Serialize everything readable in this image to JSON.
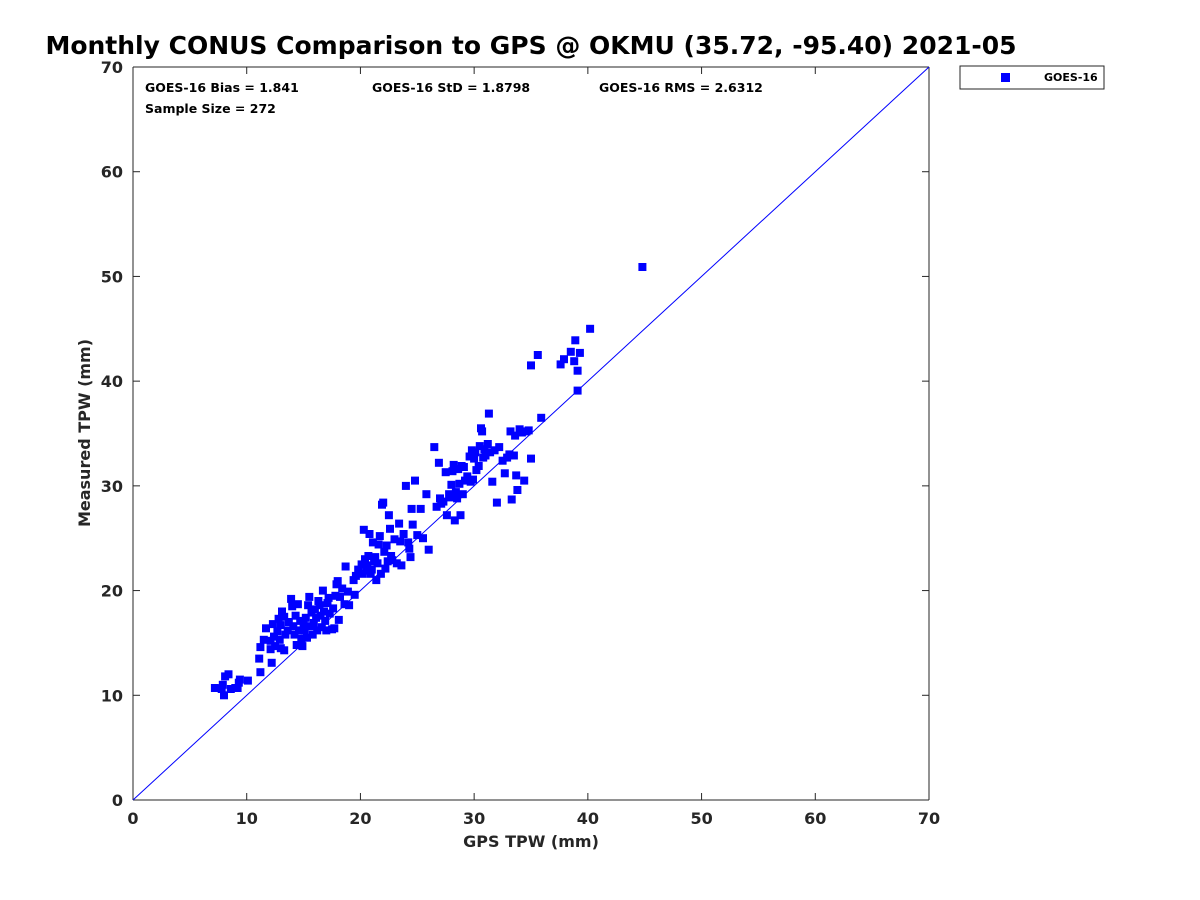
{
  "chart_data": {
    "type": "scatter",
    "title": "Monthly CONUS Comparison to GPS @ OKMU (35.72, -95.40) 2021-05",
    "xlabel": "GPS TPW (mm)",
    "ylabel": "Measured TPW (mm)",
    "xlim": [
      0,
      70
    ],
    "ylim": [
      0,
      70
    ],
    "xticks": [
      "0",
      "10",
      "20",
      "30",
      "40",
      "50",
      "60",
      "70"
    ],
    "yticks": [
      "0",
      "10",
      "20",
      "30",
      "40",
      "50",
      "60",
      "70"
    ],
    "grid": false,
    "legend_position": "top-right, outside plot",
    "reference_line": {
      "from": [
        0,
        0
      ],
      "to": [
        70,
        70
      ],
      "color": "#0000ff"
    },
    "stats": {
      "bias": "GOES-16 Bias = 1.841",
      "std": "GOES-16 StD = 1.8798",
      "rms": "GOES-16 RMS = 2.6312",
      "sample": "Sample Size = 272"
    },
    "series": [
      {
        "name": "GOES-16",
        "color": "#0000ff",
        "marker": "square",
        "points": [
          [
            7.2,
            10.7
          ],
          [
            7.8,
            10.6
          ],
          [
            8.0,
            10.0
          ],
          [
            7.9,
            11.0
          ],
          [
            8.1,
            11.8
          ],
          [
            8.4,
            12.0
          ],
          [
            8.6,
            10.6
          ],
          [
            9.0,
            10.7
          ],
          [
            9.2,
            10.7
          ],
          [
            9.4,
            11.5
          ],
          [
            9.3,
            11.2
          ],
          [
            10.1,
            11.4
          ],
          [
            11.2,
            12.2
          ],
          [
            11.1,
            13.5
          ],
          [
            11.2,
            14.6
          ],
          [
            11.5,
            15.3
          ],
          [
            11.7,
            16.4
          ],
          [
            12.1,
            14.4
          ],
          [
            12.2,
            13.1
          ],
          [
            12.1,
            15.2
          ],
          [
            12.3,
            16.8
          ],
          [
            12.4,
            15.6
          ],
          [
            12.5,
            14.7
          ],
          [
            12.7,
            16.1
          ],
          [
            12.8,
            17.3
          ],
          [
            12.9,
            15.3
          ],
          [
            13.0,
            14.5
          ],
          [
            13.0,
            16.7
          ],
          [
            13.1,
            18.0
          ],
          [
            13.3,
            17.5
          ],
          [
            13.4,
            15.8
          ],
          [
            13.3,
            14.3
          ],
          [
            13.6,
            16.2
          ],
          [
            13.7,
            17.0
          ],
          [
            13.9,
            19.2
          ],
          [
            14.0,
            18.5
          ],
          [
            14.1,
            16.6
          ],
          [
            14.2,
            15.8
          ],
          [
            14.3,
            17.6
          ],
          [
            14.5,
            18.7
          ],
          [
            14.4,
            14.8
          ],
          [
            14.6,
            16.2
          ],
          [
            14.7,
            17.1
          ],
          [
            14.8,
            15.4
          ],
          [
            14.9,
            14.7
          ],
          [
            15.0,
            16.8
          ],
          [
            15.1,
            16.2
          ],
          [
            15.2,
            17.4
          ],
          [
            15.3,
            15.5
          ],
          [
            15.4,
            18.6
          ],
          [
            15.5,
            19.4
          ],
          [
            15.6,
            16.6
          ],
          [
            15.7,
            17.9
          ],
          [
            15.8,
            15.8
          ],
          [
            15.9,
            16.9
          ],
          [
            16.0,
            18.2
          ],
          [
            16.1,
            17.4
          ],
          [
            16.2,
            16.2
          ],
          [
            16.3,
            19.0
          ],
          [
            16.4,
            18.6
          ],
          [
            16.5,
            17.6
          ],
          [
            16.6,
            16.5
          ],
          [
            16.7,
            20.0
          ],
          [
            16.8,
            18.0
          ],
          [
            16.9,
            17.1
          ],
          [
            17.0,
            16.2
          ],
          [
            17.1,
            18.8
          ],
          [
            17.2,
            19.3
          ],
          [
            17.3,
            17.8
          ],
          [
            17.5,
            16.3
          ],
          [
            17.6,
            18.3
          ],
          [
            17.7,
            16.4
          ],
          [
            17.8,
            19.5
          ],
          [
            17.9,
            20.6
          ],
          [
            18.0,
            20.9
          ],
          [
            18.1,
            17.2
          ],
          [
            18.2,
            19.4
          ],
          [
            18.4,
            20.2
          ],
          [
            18.6,
            18.7
          ],
          [
            18.7,
            22.3
          ],
          [
            18.9,
            19.9
          ],
          [
            19.0,
            18.6
          ],
          [
            19.4,
            21.0
          ],
          [
            19.5,
            19.6
          ],
          [
            19.6,
            21.4
          ],
          [
            19.8,
            22.0
          ],
          [
            20.1,
            22.5
          ],
          [
            20.2,
            21.6
          ],
          [
            20.3,
            25.8
          ],
          [
            20.4,
            23.0
          ],
          [
            20.5,
            21.9
          ],
          [
            20.6,
            22.4
          ],
          [
            20.7,
            23.3
          ],
          [
            20.8,
            25.4
          ],
          [
            20.9,
            21.6
          ],
          [
            21.0,
            22.0
          ],
          [
            21.1,
            24.6
          ],
          [
            21.2,
            22.8
          ],
          [
            21.3,
            23.2
          ],
          [
            21.4,
            21.0
          ],
          [
            21.5,
            22.6
          ],
          [
            21.6,
            24.4
          ],
          [
            21.7,
            25.2
          ],
          [
            21.8,
            21.6
          ],
          [
            21.9,
            28.2
          ],
          [
            22.0,
            28.4
          ],
          [
            22.1,
            23.7
          ],
          [
            22.2,
            22.1
          ],
          [
            22.3,
            24.3
          ],
          [
            22.4,
            22.8
          ],
          [
            22.5,
            27.2
          ],
          [
            22.6,
            25.9
          ],
          [
            22.7,
            23.3
          ],
          [
            22.8,
            22.9
          ],
          [
            23.0,
            24.9
          ],
          [
            23.2,
            22.6
          ],
          [
            23.4,
            26.4
          ],
          [
            23.5,
            24.7
          ],
          [
            23.6,
            22.4
          ],
          [
            23.8,
            25.4
          ],
          [
            24.0,
            30.0
          ],
          [
            24.2,
            24.6
          ],
          [
            24.3,
            24.0
          ],
          [
            24.4,
            23.2
          ],
          [
            24.5,
            27.8
          ],
          [
            24.6,
            26.3
          ],
          [
            24.8,
            30.5
          ],
          [
            25.0,
            25.3
          ],
          [
            25.3,
            27.8
          ],
          [
            25.5,
            25.0
          ],
          [
            25.8,
            29.2
          ],
          [
            26.0,
            23.9
          ],
          [
            26.5,
            33.7
          ],
          [
            26.7,
            28.0
          ],
          [
            26.9,
            32.2
          ],
          [
            27.0,
            28.8
          ],
          [
            27.1,
            28.3
          ],
          [
            27.3,
            28.5
          ],
          [
            27.5,
            31.3
          ],
          [
            27.6,
            27.2
          ],
          [
            27.8,
            29.2
          ],
          [
            27.9,
            28.9
          ],
          [
            28.0,
            30.1
          ],
          [
            28.1,
            31.4
          ],
          [
            28.2,
            32.0
          ],
          [
            28.3,
            26.7
          ],
          [
            28.4,
            29.4
          ],
          [
            28.5,
            28.8
          ],
          [
            28.6,
            31.6
          ],
          [
            28.7,
            30.2
          ],
          [
            28.8,
            27.2
          ],
          [
            28.9,
            31.9
          ],
          [
            29.0,
            29.2
          ],
          [
            29.1,
            31.8
          ],
          [
            29.2,
            30.5
          ],
          [
            29.4,
            30.9
          ],
          [
            29.6,
            32.8
          ],
          [
            29.7,
            30.4
          ],
          [
            29.8,
            33.4
          ],
          [
            29.9,
            30.6
          ],
          [
            30.0,
            32.6
          ],
          [
            30.1,
            33.2
          ],
          [
            30.2,
            31.5
          ],
          [
            30.4,
            31.9
          ],
          [
            30.5,
            33.8
          ],
          [
            30.6,
            35.5
          ],
          [
            30.7,
            35.2
          ],
          [
            30.8,
            32.7
          ],
          [
            30.9,
            33.5
          ],
          [
            31.0,
            32.9
          ],
          [
            31.2,
            34.0
          ],
          [
            31.3,
            36.9
          ],
          [
            31.4,
            33.2
          ],
          [
            31.6,
            30.4
          ],
          [
            31.8,
            33.4
          ],
          [
            32.0,
            28.4
          ],
          [
            32.2,
            33.7
          ],
          [
            32.5,
            32.4
          ],
          [
            32.7,
            31.2
          ],
          [
            32.9,
            32.7
          ],
          [
            33.1,
            33.0
          ],
          [
            33.2,
            35.2
          ],
          [
            33.3,
            28.7
          ],
          [
            33.5,
            32.9
          ],
          [
            33.6,
            34.8
          ],
          [
            33.7,
            31.0
          ],
          [
            33.8,
            29.6
          ],
          [
            34.0,
            35.4
          ],
          [
            34.2,
            35.1
          ],
          [
            34.4,
            30.5
          ],
          [
            34.6,
            35.2
          ],
          [
            34.8,
            35.3
          ],
          [
            35.0,
            32.6
          ],
          [
            35.0,
            41.5
          ],
          [
            35.6,
            42.5
          ],
          [
            35.9,
            36.5
          ],
          [
            37.6,
            41.6
          ],
          [
            37.9,
            42.1
          ],
          [
            38.5,
            42.8
          ],
          [
            38.8,
            41.9
          ],
          [
            38.9,
            43.9
          ],
          [
            39.1,
            41.0
          ],
          [
            39.3,
            42.7
          ],
          [
            39.1,
            39.1
          ],
          [
            40.2,
            45.0
          ],
          [
            44.8,
            50.9
          ]
        ]
      }
    ]
  }
}
